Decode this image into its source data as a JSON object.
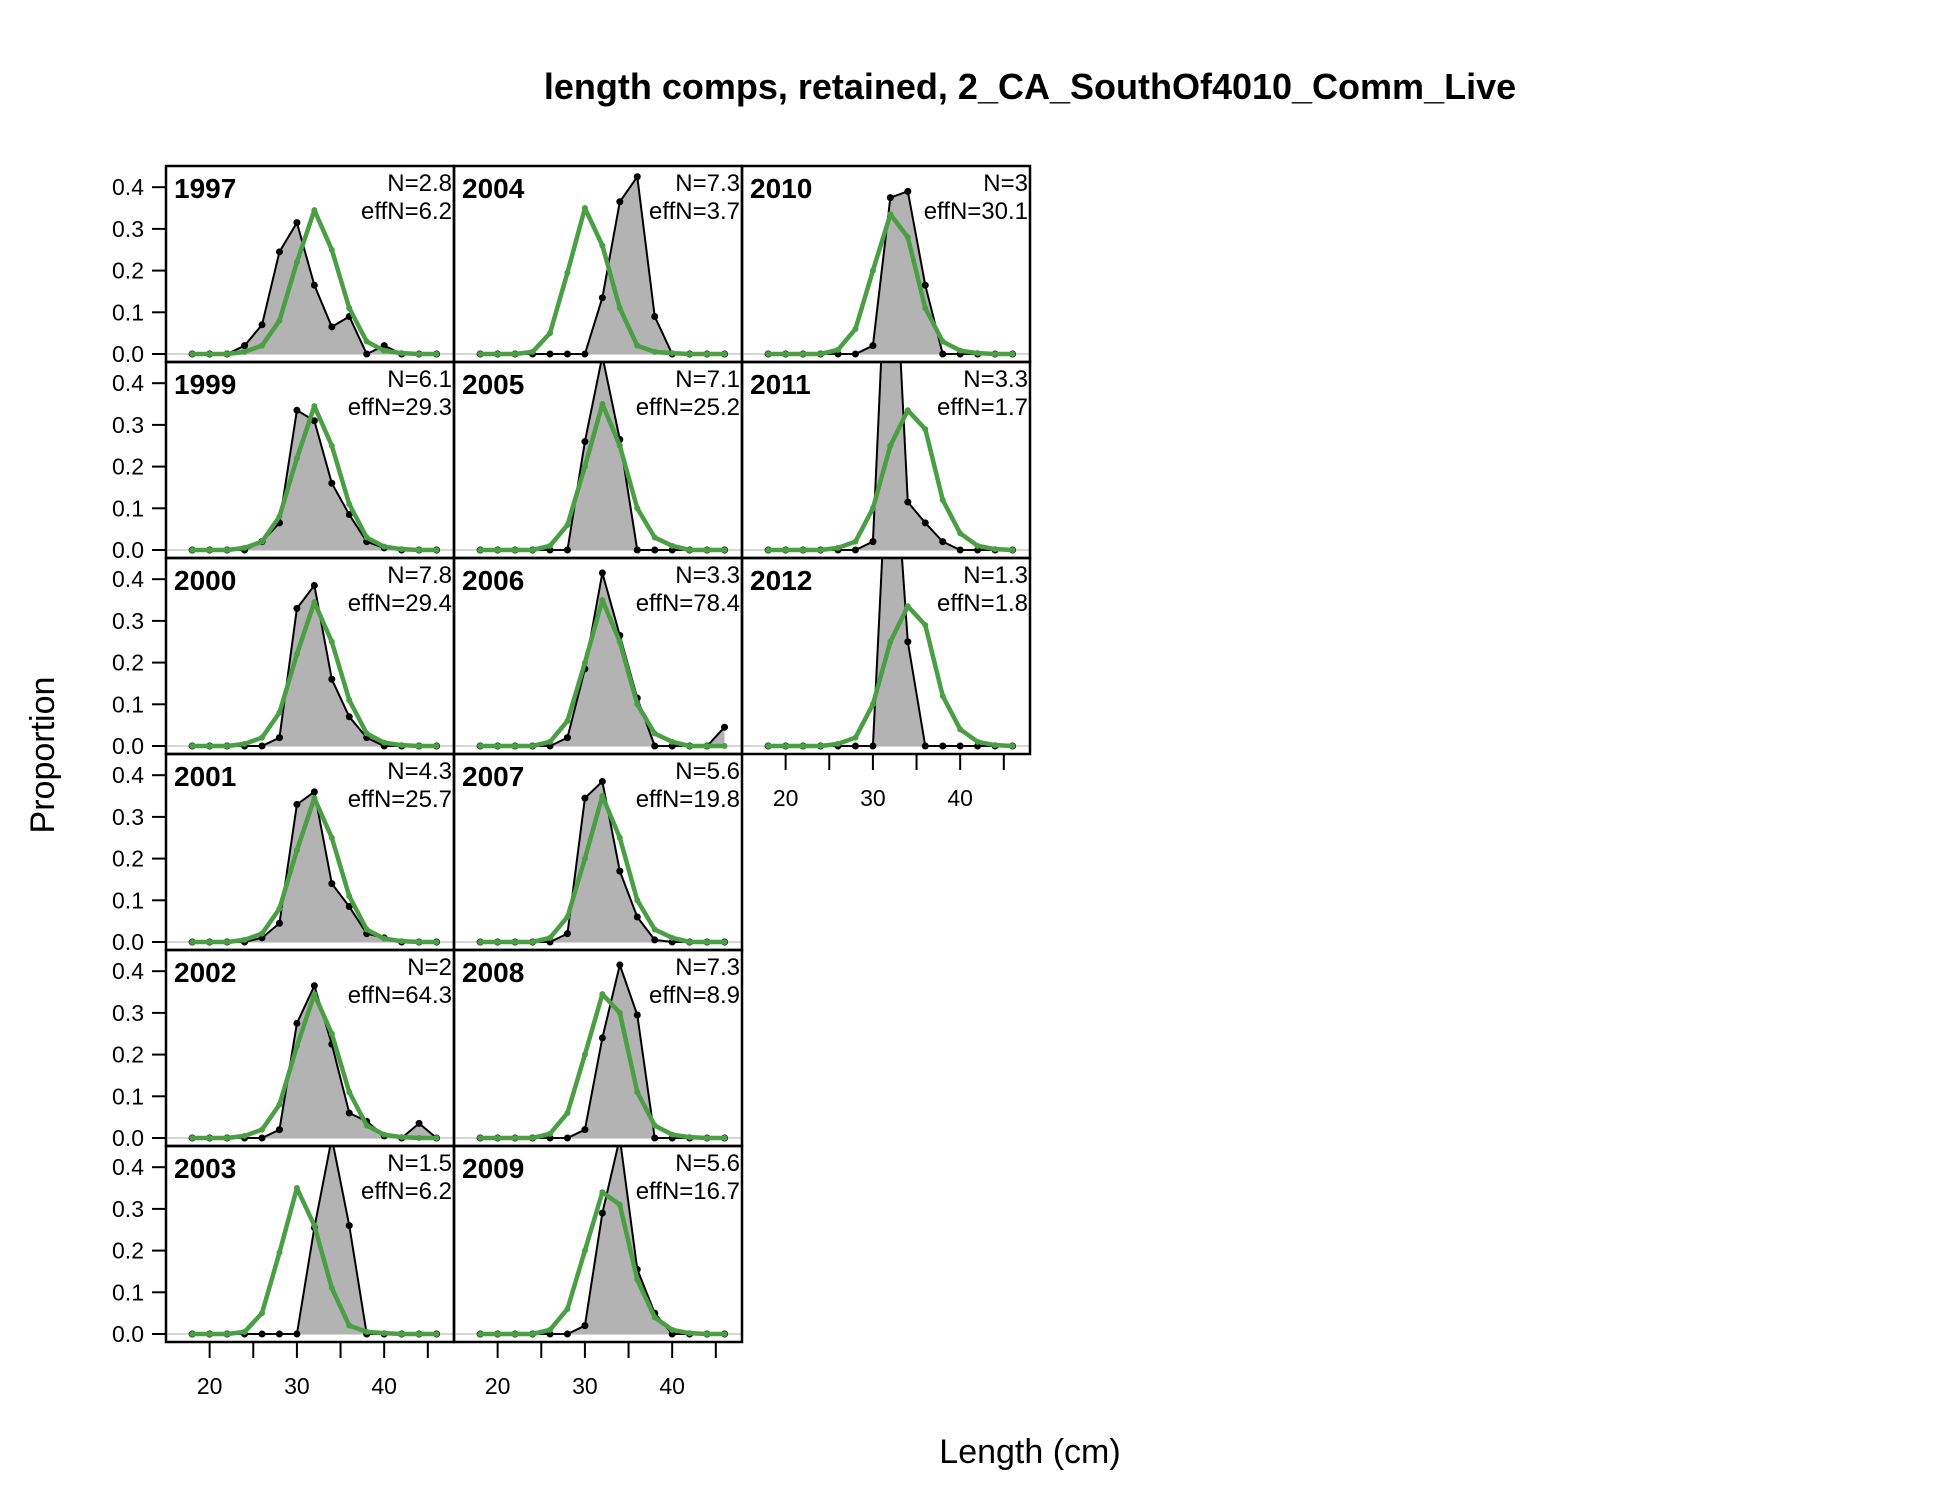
{
  "chart_data": {
    "type": "line",
    "title": "length comps, retained, 2_CA_SouthOf4010_Comm_Live",
    "xlabel": "Length (cm)",
    "ylabel": "Proportion",
    "xlim": [
      15,
      48
    ],
    "ylim": [
      0,
      0.47
    ],
    "x_ticks": [
      20,
      30,
      40
    ],
    "x_minor_ticks": [
      20,
      25,
      30,
      35,
      40,
      45
    ],
    "y_ticks": [
      0.0,
      0.1,
      0.2,
      0.3,
      0.4
    ],
    "y_tick_labels": [
      "0.0",
      "0.1",
      "0.2",
      "0.3",
      "0.4"
    ],
    "x_tick_labels": [
      "20",
      "30",
      "40"
    ],
    "bins": [
      18,
      20,
      22,
      24,
      26,
      28,
      30,
      32,
      34,
      36,
      38,
      40,
      42,
      44,
      46
    ],
    "legend": "none",
    "colors": {
      "observed_fill": "#b3b3b3",
      "observed_line": "#000000",
      "expected_line": "#4a9e44"
    },
    "panels": [
      {
        "year": "1997",
        "n_label": "N=2.8",
        "effn_label": "effN=6.2",
        "col": 0,
        "row": 0,
        "observed": [
          0,
          0,
          0,
          0.02,
          0.07,
          0.245,
          0.315,
          0.165,
          0.065,
          0.09,
          0,
          0.02,
          0,
          0,
          0
        ],
        "expected": [
          0,
          0,
          0,
          0.005,
          0.02,
          0.08,
          0.22,
          0.345,
          0.25,
          0.11,
          0.03,
          0.008,
          0.002,
          0,
          0
        ]
      },
      {
        "year": "1999",
        "n_label": "N=6.1",
        "effn_label": "effN=29.3",
        "col": 0,
        "row": 1,
        "observed": [
          0,
          0,
          0,
          0,
          0.02,
          0.065,
          0.335,
          0.31,
          0.16,
          0.085,
          0.02,
          0.005,
          0,
          0,
          0
        ],
        "expected": [
          0,
          0,
          0,
          0.005,
          0.02,
          0.08,
          0.22,
          0.345,
          0.25,
          0.11,
          0.03,
          0.008,
          0.002,
          0,
          0
        ]
      },
      {
        "year": "2000",
        "n_label": "N=7.8",
        "effn_label": "effN=29.4",
        "col": 0,
        "row": 2,
        "observed": [
          0,
          0,
          0,
          0,
          0,
          0.02,
          0.33,
          0.385,
          0.16,
          0.07,
          0.02,
          0,
          0,
          0,
          0
        ],
        "expected": [
          0,
          0,
          0,
          0.005,
          0.02,
          0.08,
          0.22,
          0.345,
          0.25,
          0.11,
          0.03,
          0.008,
          0.002,
          0,
          0
        ]
      },
      {
        "year": "2001",
        "n_label": "N=4.3",
        "effn_label": "effN=25.7",
        "col": 0,
        "row": 3,
        "observed": [
          0,
          0,
          0,
          0,
          0.01,
          0.045,
          0.33,
          0.36,
          0.14,
          0.085,
          0.02,
          0.01,
          0,
          0,
          0
        ],
        "expected": [
          0,
          0,
          0,
          0.005,
          0.02,
          0.08,
          0.22,
          0.345,
          0.25,
          0.11,
          0.03,
          0.008,
          0.002,
          0,
          0
        ]
      },
      {
        "year": "2002",
        "n_label": "N=2",
        "effn_label": "effN=64.3",
        "col": 0,
        "row": 4,
        "observed": [
          0,
          0,
          0,
          0,
          0,
          0.02,
          0.275,
          0.365,
          0.225,
          0.06,
          0.04,
          0.005,
          0,
          0.035,
          0
        ],
        "expected": [
          0,
          0,
          0,
          0.005,
          0.02,
          0.08,
          0.22,
          0.345,
          0.25,
          0.11,
          0.03,
          0.008,
          0.002,
          0,
          0
        ]
      },
      {
        "year": "2003",
        "n_label": "N=1.5",
        "effn_label": "effN=6.2",
        "col": 0,
        "row": 5,
        "observed": [
          0,
          0,
          0,
          0,
          0,
          0,
          0,
          0.255,
          0.47,
          0.26,
          0,
          0,
          0,
          0,
          0
        ],
        "expected": [
          0,
          0,
          0,
          0.005,
          0.05,
          0.195,
          0.35,
          0.26,
          0.11,
          0.02,
          0.005,
          0.002,
          0,
          0,
          0
        ]
      },
      {
        "year": "2004",
        "n_label": "N=7.3",
        "effn_label": "effN=3.7",
        "col": 1,
        "row": 0,
        "observed": [
          0,
          0,
          0,
          0,
          0,
          0,
          0,
          0.135,
          0.365,
          0.425,
          0.09,
          0,
          0,
          0,
          0
        ],
        "expected": [
          0,
          0,
          0,
          0.005,
          0.05,
          0.195,
          0.35,
          0.26,
          0.11,
          0.02,
          0.005,
          0.002,
          0,
          0,
          0
        ]
      },
      {
        "year": "2005",
        "n_label": "N=7.1",
        "effn_label": "effN=25.2",
        "col": 1,
        "row": 1,
        "observed": [
          0,
          0,
          0,
          0,
          0,
          0,
          0.26,
          0.465,
          0.265,
          0,
          0,
          0,
          0,
          0,
          0
        ],
        "expected": [
          0,
          0,
          0,
          0,
          0.01,
          0.06,
          0.2,
          0.35,
          0.25,
          0.1,
          0.03,
          0.01,
          0,
          0,
          0
        ]
      },
      {
        "year": "2006",
        "n_label": "N=3.3",
        "effn_label": "effN=78.4",
        "col": 1,
        "row": 2,
        "observed": [
          0,
          0,
          0,
          0,
          0,
          0.02,
          0.185,
          0.415,
          0.265,
          0.115,
          0,
          0,
          0,
          0,
          0.045
        ],
        "expected": [
          0,
          0,
          0,
          0,
          0.01,
          0.06,
          0.2,
          0.35,
          0.25,
          0.1,
          0.03,
          0.01,
          0,
          0,
          0
        ]
      },
      {
        "year": "2007",
        "n_label": "N=5.6",
        "effn_label": "effN=19.8",
        "col": 1,
        "row": 3,
        "observed": [
          0,
          0,
          0,
          0,
          0,
          0.02,
          0.345,
          0.385,
          0.17,
          0.06,
          0.005,
          0,
          0,
          0,
          0
        ],
        "expected": [
          0,
          0,
          0,
          0,
          0.01,
          0.06,
          0.2,
          0.35,
          0.25,
          0.1,
          0.03,
          0.01,
          0,
          0,
          0
        ]
      },
      {
        "year": "2008",
        "n_label": "N=7.3",
        "effn_label": "effN=8.9",
        "col": 1,
        "row": 4,
        "observed": [
          0,
          0,
          0,
          0,
          0,
          0,
          0.02,
          0.24,
          0.415,
          0.295,
          0,
          0,
          0,
          0,
          0
        ],
        "expected": [
          0,
          0,
          0,
          0,
          0.01,
          0.06,
          0.2,
          0.345,
          0.3,
          0.11,
          0.03,
          0.008,
          0.002,
          0,
          0
        ]
      },
      {
        "year": "2009",
        "n_label": "N=5.6",
        "effn_label": "effN=16.7",
        "col": 1,
        "row": 5,
        "observed": [
          0,
          0,
          0,
          0,
          0,
          0,
          0.02,
          0.29,
          0.47,
          0.155,
          0.05,
          0,
          0,
          0,
          0
        ],
        "expected": [
          0,
          0,
          0,
          0,
          0.01,
          0.06,
          0.2,
          0.34,
          0.31,
          0.13,
          0.04,
          0.01,
          0.002,
          0,
          0
        ]
      },
      {
        "year": "2010",
        "n_label": "N=3",
        "effn_label": "effN=30.1",
        "col": 2,
        "row": 0,
        "observed": [
          0,
          0,
          0,
          0,
          0,
          0,
          0.02,
          0.375,
          0.39,
          0.165,
          0,
          0,
          0,
          0,
          0
        ],
        "expected": [
          0,
          0,
          0,
          0,
          0.01,
          0.06,
          0.2,
          0.335,
          0.28,
          0.11,
          0.03,
          0.008,
          0.002,
          0,
          0
        ]
      },
      {
        "year": "2011",
        "n_label": "N=3.3",
        "effn_label": "effN=1.7",
        "col": 2,
        "row": 1,
        "observed": [
          0,
          0,
          0,
          0,
          0,
          0,
          0.02,
          0.94,
          0.115,
          0.065,
          0.02,
          0,
          0,
          0,
          0
        ],
        "expected": [
          0,
          0,
          0,
          0,
          0.005,
          0.02,
          0.1,
          0.25,
          0.335,
          0.29,
          0.12,
          0.04,
          0.01,
          0.002,
          0
        ]
      },
      {
        "year": "2012",
        "n_label": "N=1.3",
        "effn_label": "effN=1.8",
        "col": 2,
        "row": 2,
        "observed": [
          0,
          0,
          0,
          0,
          0,
          0,
          0,
          0.85,
          0.25,
          0,
          0,
          0,
          0,
          0,
          0
        ],
        "expected": [
          0,
          0,
          0,
          0,
          0.005,
          0.02,
          0.1,
          0.25,
          0.335,
          0.29,
          0.12,
          0.04,
          0.01,
          0.002,
          0
        ]
      }
    ]
  }
}
